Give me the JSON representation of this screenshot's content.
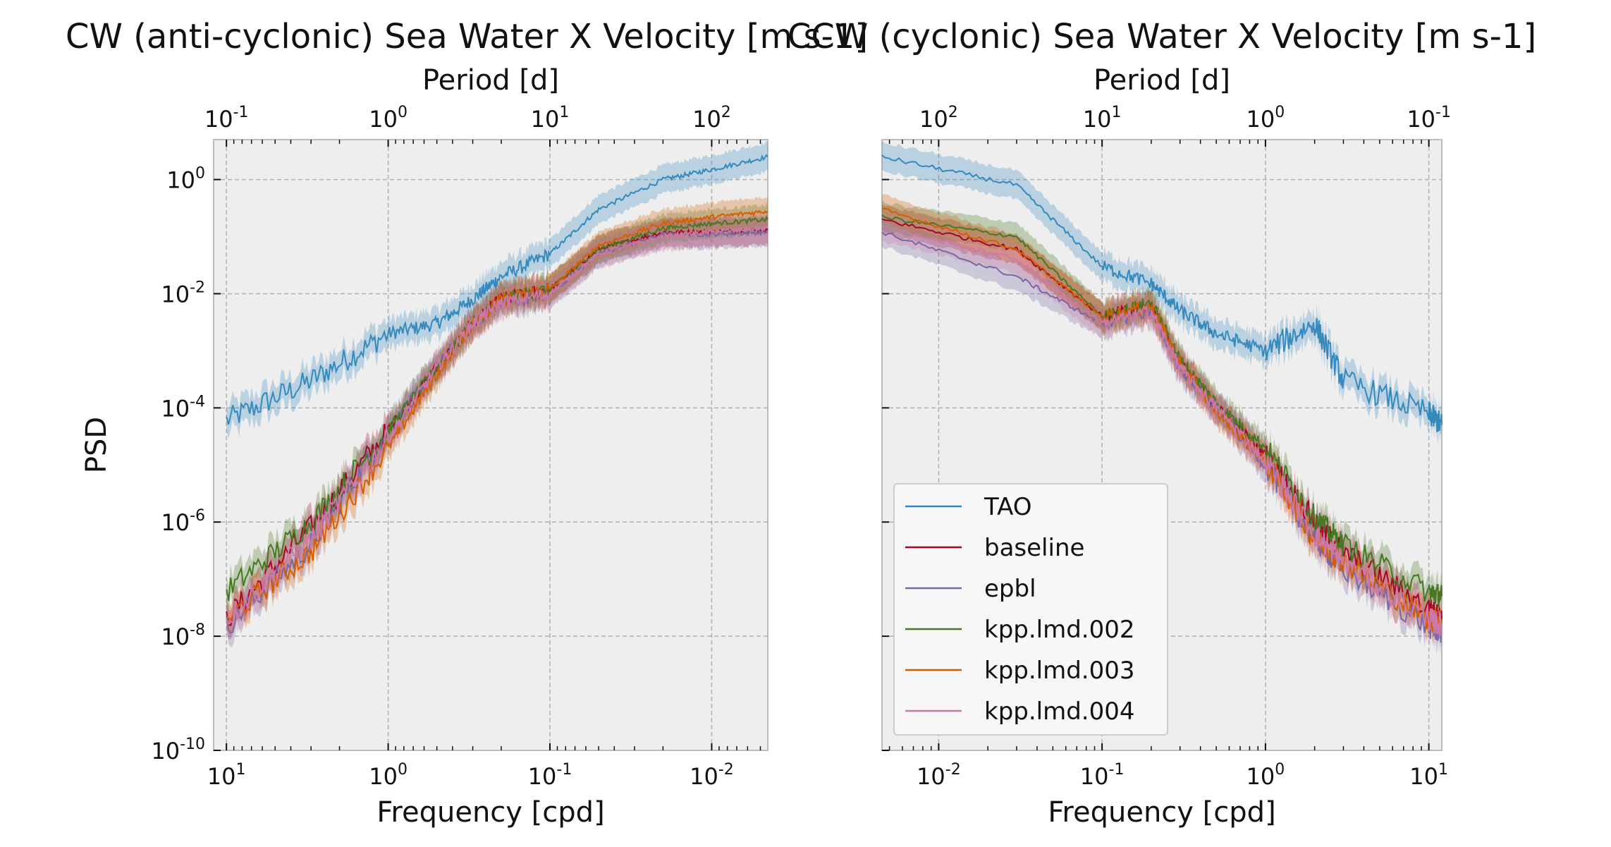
{
  "chart_data": [
    {
      "type": "line",
      "title": "CW (anti-cyclonic) Sea Water X Velocity [m s-1]",
      "xlabel": "Frequency [cpd]",
      "ylabel": "PSD",
      "top_xlabel": "Period [d]",
      "x_scale": "log",
      "y_scale": "log",
      "x_inverted": true,
      "xlim": [
        12,
        0.0045
      ],
      "ylim": [
        1e-10,
        5
      ],
      "x_ticks": [
        10,
        1,
        0.1,
        0.01
      ],
      "y_ticks": [
        1,
        0.01,
        0.0001,
        1e-06,
        1e-08,
        1e-10
      ],
      "top_ticks": [
        0.1,
        1,
        10,
        100
      ],
      "grid": true,
      "series": [
        {
          "name": "TAO",
          "color": "#348ABD",
          "x": [
            10,
            3,
            1,
            0.5,
            0.3,
            0.2,
            0.1,
            0.05,
            0.02,
            0.01,
            0.0045
          ],
          "y": [
            6e-05,
            0.0003,
            0.002,
            0.003,
            0.008,
            0.02,
            0.05,
            0.3,
            1.0,
            1.5,
            2.5
          ]
        },
        {
          "name": "baseline",
          "color": "#A60628",
          "x": [
            10,
            3,
            1,
            0.5,
            0.3,
            0.2,
            0.1,
            0.05,
            0.02,
            0.01,
            0.0045
          ],
          "y": [
            2e-08,
            8e-07,
            4e-05,
            0.0005,
            0.003,
            0.008,
            0.012,
            0.06,
            0.12,
            0.12,
            0.13
          ]
        },
        {
          "name": "epbl",
          "color": "#7A68A6",
          "x": [
            10,
            3,
            1,
            0.5,
            0.3,
            0.2,
            0.1,
            0.05,
            0.02,
            0.01,
            0.0045
          ],
          "y": [
            1.5e-08,
            4e-07,
            4e-05,
            0.0005,
            0.003,
            0.007,
            0.01,
            0.05,
            0.11,
            0.11,
            0.12
          ]
        },
        {
          "name": "kpp.lmd.002",
          "color": "#467821",
          "x": [
            10,
            3,
            1,
            0.5,
            0.3,
            0.2,
            0.1,
            0.05,
            0.02,
            0.01,
            0.0045
          ],
          "y": [
            6e-08,
            1e-06,
            4e-05,
            0.0005,
            0.003,
            0.008,
            0.012,
            0.06,
            0.14,
            0.17,
            0.2
          ]
        },
        {
          "name": "kpp.lmd.003",
          "color": "#D55E00",
          "x": [
            10,
            3,
            1,
            0.5,
            0.3,
            0.2,
            0.1,
            0.05,
            0.02,
            0.01,
            0.0045
          ],
          "y": [
            2e-08,
            3e-07,
            2e-05,
            0.0004,
            0.003,
            0.008,
            0.012,
            0.07,
            0.17,
            0.22,
            0.28
          ]
        },
        {
          "name": "kpp.lmd.004",
          "color": "#CC79A7",
          "x": [
            10,
            3,
            1,
            0.5,
            0.3,
            0.2,
            0.1,
            0.05,
            0.02,
            0.01,
            0.0045
          ],
          "y": [
            2e-08,
            5e-07,
            3e-05,
            0.0005,
            0.003,
            0.007,
            0.01,
            0.05,
            0.1,
            0.12,
            0.14
          ]
        }
      ]
    },
    {
      "type": "line",
      "title": "CCW (cyclonic) Sea Water X Velocity [m s-1]",
      "xlabel": "Frequency [cpd]",
      "ylabel": "",
      "top_xlabel": "Period [d]",
      "x_scale": "log",
      "y_scale": "log",
      "x_inverted": false,
      "xlim": [
        0.0045,
        12
      ],
      "ylim": [
        1e-10,
        5
      ],
      "x_ticks": [
        0.01,
        0.1,
        1,
        10
      ],
      "top_ticks": [
        100,
        10,
        1,
        0.1
      ],
      "grid": true,
      "legend": "lower-left",
      "series": [
        {
          "name": "TAO",
          "color": "#348ABD",
          "x": [
            0.0045,
            0.03,
            0.1,
            0.2,
            0.3,
            0.5,
            1,
            2,
            3,
            10,
            12
          ],
          "y": [
            2.5,
            0.8,
            0.03,
            0.015,
            0.005,
            0.002,
            0.001,
            0.003,
            0.0003,
            8e-05,
            5e-05
          ]
        },
        {
          "name": "baseline",
          "color": "#A60628",
          "x": [
            0.0045,
            0.03,
            0.1,
            0.2,
            0.3,
            0.5,
            1,
            2,
            3,
            10,
            12
          ],
          "y": [
            0.2,
            0.06,
            0.004,
            0.006,
            0.0006,
            0.0001,
            1.5e-05,
            1e-06,
            3e-07,
            3e-08,
            2e-08
          ]
        },
        {
          "name": "epbl",
          "color": "#7A68A6",
          "x": [
            0.0045,
            0.03,
            0.1,
            0.2,
            0.3,
            0.5,
            1,
            2,
            3,
            10,
            12
          ],
          "y": [
            0.12,
            0.02,
            0.003,
            0.005,
            0.0005,
            0.0001,
            1e-05,
            5e-07,
            1.5e-07,
            1.5e-08,
            1.2e-08
          ]
        },
        {
          "name": "kpp.lmd.002",
          "color": "#467821",
          "x": [
            0.0045,
            0.03,
            0.1,
            0.2,
            0.3,
            0.5,
            1,
            2,
            3,
            10,
            12
          ],
          "y": [
            0.22,
            0.1,
            0.004,
            0.007,
            0.0007,
            0.00012,
            2e-05,
            1.2e-06,
            4e-07,
            6e-08,
            5e-08
          ]
        },
        {
          "name": "kpp.lmd.003",
          "color": "#D55E00",
          "x": [
            0.0045,
            0.03,
            0.1,
            0.2,
            0.3,
            0.5,
            1,
            2,
            3,
            10,
            12
          ],
          "y": [
            0.3,
            0.06,
            0.004,
            0.006,
            0.0006,
            9e-05,
            1.2e-05,
            5e-07,
            2e-07,
            2e-08,
            2e-08
          ]
        },
        {
          "name": "kpp.lmd.004",
          "color": "#CC79A7",
          "x": [
            0.0045,
            0.03,
            0.1,
            0.2,
            0.3,
            0.5,
            1,
            2,
            3,
            10,
            12
          ],
          "y": [
            0.15,
            0.04,
            0.003,
            0.005,
            0.0005,
            0.0001,
            1.2e-05,
            6e-07,
            2e-07,
            2e-08,
            1.5e-08
          ]
        }
      ]
    }
  ]
}
